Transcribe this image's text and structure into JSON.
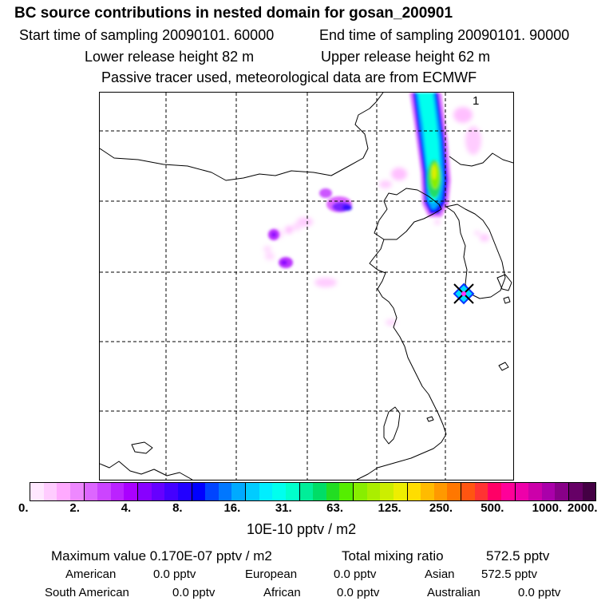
{
  "header": {
    "title": "BC  source contributions in nested domain for gosan_200901",
    "start_label": "Start time of sampling 20090101. 60000",
    "end_label": "End time of sampling 20090101. 90000",
    "lower_label": "Lower release height   82 m",
    "upper_label": "Upper release height   62 m",
    "tracer_label": "Passive tracer used, meteorological data are from ECMWF"
  },
  "map": {
    "marker_number": "1",
    "colors": {
      "coast": "#000000",
      "grid": "#000000",
      "plume_magenta": "#ff66ff",
      "plume_purple": "#8800ee",
      "plume_blue": "#1111ff",
      "plume_cyan": "#00ddff",
      "plume_green": "#22dd66",
      "plume_yellow": "#ddee00",
      "receptor": "#0a36ff"
    }
  },
  "legend": {
    "unit": "10E-10 pptv / m2",
    "ticks": [
      "0.",
      "2.",
      "4.",
      "8.",
      "16.",
      "31.",
      "63.",
      "125.",
      "250.",
      "500.",
      "1000.",
      "2000."
    ],
    "colors": [
      "#ffe8ff",
      "#ffccff",
      "#ffaaff",
      "#ee88ff",
      "#dd66ff",
      "#cc44ff",
      "#bb22ff",
      "#aa00ff",
      "#8800ff",
      "#6600ff",
      "#4400ff",
      "#2200ff",
      "#0000ff",
      "#0044ff",
      "#0077ff",
      "#00aaff",
      "#00ccff",
      "#00eeff",
      "#00ffee",
      "#00ffcc",
      "#00ee99",
      "#00dd66",
      "#22dd22",
      "#55ee00",
      "#88ee00",
      "#aaee00",
      "#ccee00",
      "#eeee00",
      "#ffdd00",
      "#ffbb00",
      "#ff9900",
      "#ff7700",
      "#ff5511",
      "#ff3333",
      "#ff0066",
      "#ff0099",
      "#ee00aa",
      "#cc00aa",
      "#aa00aa",
      "#880088",
      "#660066",
      "#440044"
    ]
  },
  "stats": {
    "max_label": "Maximum value  0.170E-07 pptv / m2",
    "total_label": "Total mixing ratio",
    "total_value": "572.5 pptv",
    "american_label": "American",
    "american_value": "0.0 pptv",
    "european_label": "European",
    "european_value": "0.0 pptv",
    "asian_label": "Asian",
    "asian_value": "572.5 pptv",
    "south_american_label": "South American",
    "south_american_value": "0.0 pptv",
    "african_label": "African",
    "african_value": "0.0 pptv",
    "australian_label": "Australian",
    "australian_value": "0.0 pptv"
  }
}
